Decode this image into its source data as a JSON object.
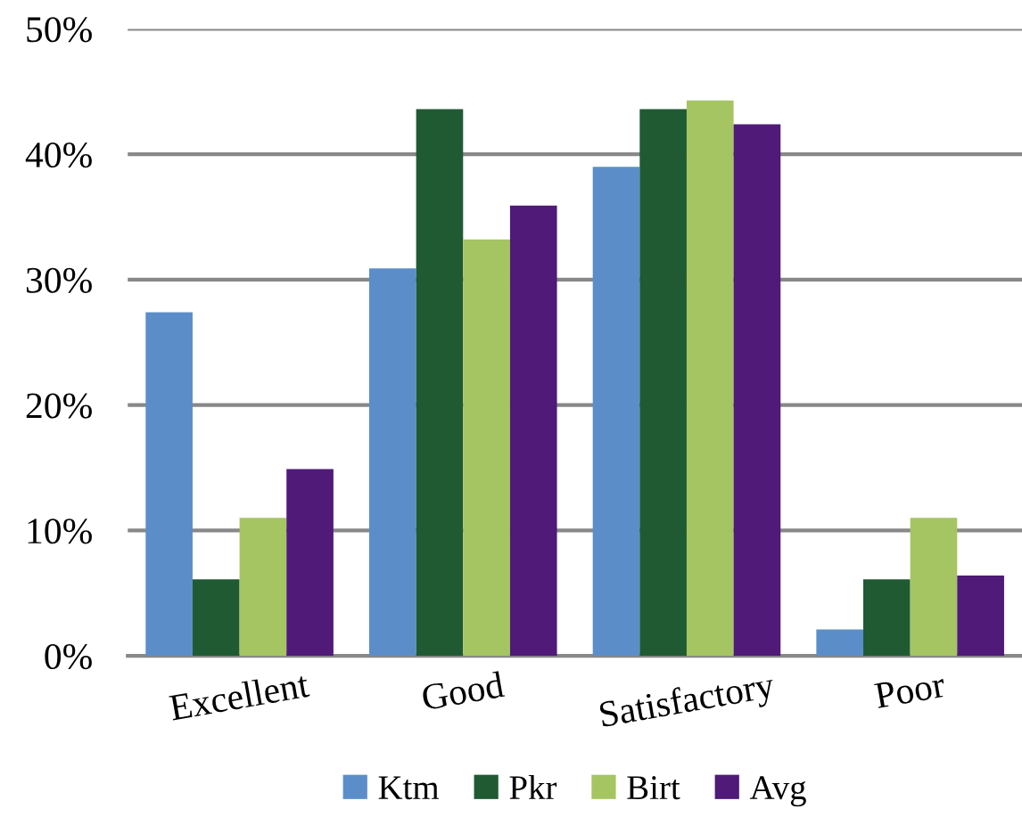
{
  "chart_data": {
    "type": "bar",
    "categories": [
      "Excellent",
      "Good",
      "Satisfactory",
      "Poor"
    ],
    "series": [
      {
        "name": "Ktm",
        "color": "#5b8ec9",
        "values": [
          27.4,
          30.9,
          39.0,
          2.1
        ]
      },
      {
        "name": "Pkr",
        "color": "#1f5a32",
        "values": [
          6.1,
          43.6,
          43.6,
          6.1
        ]
      },
      {
        "name": "Birt",
        "color": "#a5c563",
        "values": [
          11.0,
          33.2,
          44.3,
          11.0
        ]
      },
      {
        "name": "Avg",
        "color": "#4f1a78",
        "values": [
          14.9,
          35.9,
          42.4,
          6.4
        ]
      }
    ],
    "ylim": [
      0,
      50
    ],
    "yticks": [
      {
        "value": 0,
        "label": "0%"
      },
      {
        "value": 10,
        "label": "10%"
      },
      {
        "value": 20,
        "label": "20%"
      },
      {
        "value": 30,
        "label": "30%"
      },
      {
        "value": 40,
        "label": "40%"
      },
      {
        "value": 50,
        "label": "50%"
      }
    ],
    "grid": "y",
    "legend": "bottom"
  }
}
